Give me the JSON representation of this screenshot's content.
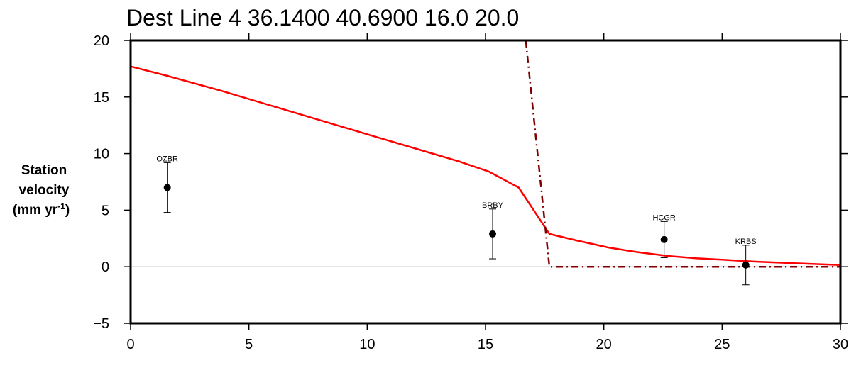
{
  "chart_data": {
    "type": "line",
    "title": "Dest Line 4 36.1400 40.6900 16.0 20.0",
    "xlabel": "",
    "ylabel": {
      "line1": "Station",
      "line2": "velocity",
      "line3_prefix": "(mm yr",
      "line3_sup": "-1",
      "line3_suffix": ")"
    },
    "xlim": [
      0,
      30
    ],
    "ylim": [
      -5,
      20
    ],
    "xticks": [
      0,
      5,
      10,
      15,
      20,
      25,
      30
    ],
    "yticks": [
      -5,
      0,
      5,
      10,
      15,
      20
    ],
    "ytick_labels": [
      "−5",
      "0",
      "5",
      "10",
      "15",
      "20"
    ],
    "zero_line": true,
    "series": [
      {
        "style": "solid",
        "color": "#ff0000",
        "x": [
          0,
          1.5,
          3.75,
          6.0,
          8.25,
          10.5,
          12.6,
          13.9,
          15.15,
          16.4,
          17.7,
          18.9,
          20.2,
          21.4,
          22.7,
          23.9,
          25.2,
          26.4,
          27.6,
          28.8,
          30.0
        ],
        "y": [
          17.7,
          16.9,
          15.6,
          14.2,
          12.8,
          11.4,
          10.1,
          9.3,
          8.4,
          7.0,
          2.9,
          2.3,
          1.7,
          1.3,
          0.95,
          0.75,
          0.6,
          0.45,
          0.35,
          0.25,
          0.15
        ]
      },
      {
        "style": "dashdot",
        "color": "#800000",
        "x": [
          16.7,
          17.7,
          30.0
        ],
        "y": [
          20.0,
          0.0,
          0.0
        ]
      }
    ],
    "stations": [
      {
        "name": "OZBR",
        "x": 1.55,
        "y": 7.0,
        "err_low": 4.8,
        "err_high": 9.2
      },
      {
        "name": "BRBY",
        "x": 15.3,
        "y": 2.9,
        "err_low": 0.7,
        "err_high": 5.1
      },
      {
        "name": "HCGR",
        "x": 22.55,
        "y": 2.4,
        "err_low": 0.8,
        "err_high": 4.0
      },
      {
        "name": "KRBS",
        "x": 26.0,
        "y": 0.15,
        "err_low": -1.6,
        "err_high": 1.9
      }
    ],
    "colors": {
      "frame": "#000000",
      "zero_line": "#999999",
      "model": "#ff0000",
      "step": "#800000"
    }
  }
}
